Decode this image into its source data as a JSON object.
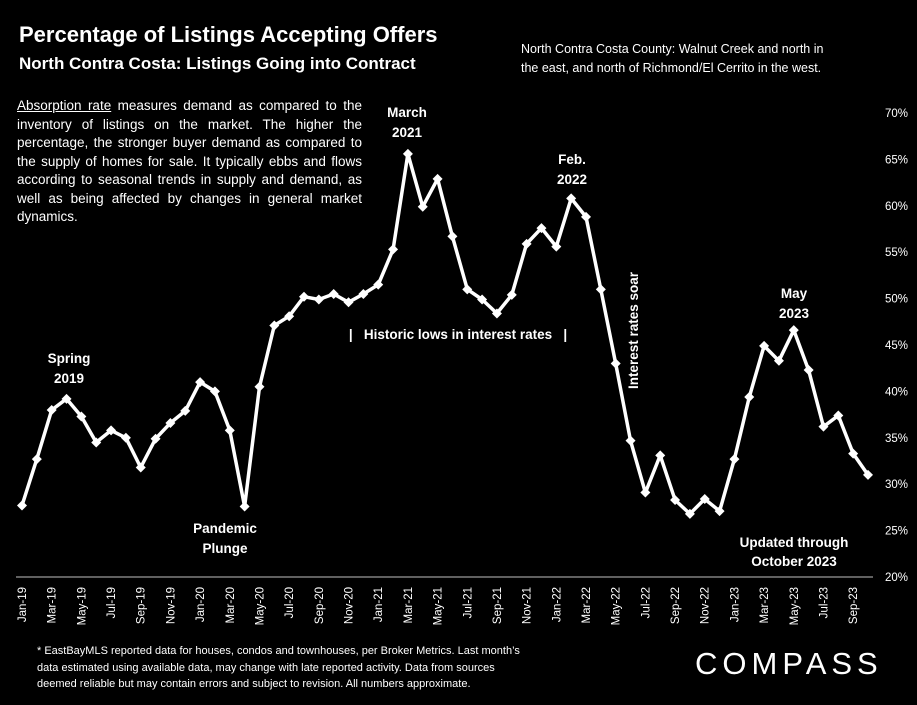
{
  "header": {
    "title": "Percentage of Listings Accepting Offers",
    "subtitle": "North Contra Costa: Listings Going into Contract",
    "region_note_line1": "North Contra Costa County: Walnut Creek and north in",
    "region_note_line2": "the east, and north of Richmond/El Cerrito in the west."
  },
  "description": {
    "term": "Absorption rate",
    "text": " measures demand as compared to the inventory of listings on the market. The higher the percentage, the stronger buyer demand as compared to the supply of homes for sale. It typically ebbs and flows according to seasonal trends in supply and demand, as well as being affected by changes in general market dynamics."
  },
  "footnote": {
    "line1": "* EastBayMLS reported data for houses, condos and townhouses, per Broker Metrics. Last month’s",
    "line2": "data estimated using available data, may change with late reported activity. Data from sources",
    "line3": "deemed reliable but may contain errors and subject to revision. All numbers approximate."
  },
  "logo": {
    "text": "COMPASS"
  },
  "chart_data": {
    "type": "line",
    "title": "Percentage of Listings Accepting Offers",
    "ylim": [
      20,
      70
    ],
    "y_ticks": [
      20,
      25,
      30,
      35,
      40,
      45,
      50,
      55,
      60,
      65,
      70
    ],
    "y_tick_labels": [
      "20%",
      "25%",
      "30%",
      "35%",
      "40%",
      "45%",
      "50%",
      "55%",
      "60%",
      "65%",
      "70%"
    ],
    "y_axis_position": "right",
    "grid": false,
    "x_tick_labels": [
      "Jan-19",
      "Mar-19",
      "May-19",
      "Jul-19",
      "Sep-19",
      "Nov-19",
      "Jan-20",
      "Mar-20",
      "May-20",
      "Jul-20",
      "Sep-20",
      "Nov-20",
      "Jan-21",
      "Mar-21",
      "May-21",
      "Jul-21",
      "Sep-21",
      "Nov-21",
      "Jan-22",
      "Mar-22",
      "May-22",
      "Jul-22",
      "Sep-22",
      "Nov-22",
      "Jan-23",
      "Mar-23",
      "May-23",
      "Jul-23",
      "Sep-23"
    ],
    "categories": [
      "Jan-19",
      "Feb-19",
      "Mar-19",
      "Apr-19",
      "May-19",
      "Jun-19",
      "Jul-19",
      "Aug-19",
      "Sep-19",
      "Oct-19",
      "Nov-19",
      "Dec-19",
      "Jan-20",
      "Feb-20",
      "Mar-20",
      "Apr-20",
      "May-20",
      "Jun-20",
      "Jul-20",
      "Aug-20",
      "Sep-20",
      "Oct-20",
      "Nov-20",
      "Dec-20",
      "Jan-21",
      "Feb-21",
      "Mar-21",
      "Apr-21",
      "May-21",
      "Jun-21",
      "Jul-21",
      "Aug-21",
      "Sep-21",
      "Oct-21",
      "Nov-21",
      "Dec-21",
      "Jan-22",
      "Feb-22",
      "Mar-22",
      "Apr-22",
      "May-22",
      "Jun-22",
      "Jul-22",
      "Aug-22",
      "Sep-22",
      "Oct-22",
      "Nov-22",
      "Dec-22",
      "Jan-23",
      "Feb-23",
      "Mar-23",
      "Apr-23",
      "May-23",
      "Jun-23",
      "Jul-23",
      "Aug-23",
      "Sep-23",
      "Oct-23"
    ],
    "series": [
      {
        "values": [
          27.7,
          32.7,
          38.0,
          39.2,
          37.3,
          34.5,
          35.8,
          35.0,
          31.8,
          34.9,
          36.6,
          37.9,
          41.0,
          40.0,
          35.8,
          27.6,
          40.5,
          47.1,
          48.1,
          50.2,
          49.9,
          50.5,
          49.6,
          50.5,
          51.5,
          55.3,
          65.6,
          59.9,
          62.9,
          56.7,
          51.0,
          49.9,
          48.4,
          50.4,
          55.9,
          57.6,
          55.6,
          60.8,
          58.8,
          51.0,
          43.0,
          34.7,
          29.1,
          33.1,
          28.3,
          26.8,
          28.4,
          27.1,
          32.7,
          39.4,
          44.9,
          43.3,
          46.6,
          42.3,
          36.2,
          37.4,
          33.3,
          31.0
        ]
      }
    ],
    "annotations": {
      "spring_2019_line1": "Spring",
      "spring_2019_line2": "2019",
      "pandemic_line1": "Pandemic",
      "pandemic_line2": "Plunge",
      "march_2021_line1": "March",
      "march_2021_line2": "2021",
      "feb_2022_line1": "Feb.",
      "feb_2022_line2": "2022",
      "historic_lows": "|   Historic lows in interest rates   |",
      "interest_rates_soar": "Interest rates soar",
      "may_2023_line1": "May",
      "may_2023_line2": "2023",
      "updated_line1": "Updated through",
      "updated_line2": "October 2023"
    },
    "colors": {
      "background": "#000000",
      "line": "#ffffff",
      "text": "#ffffff"
    }
  }
}
